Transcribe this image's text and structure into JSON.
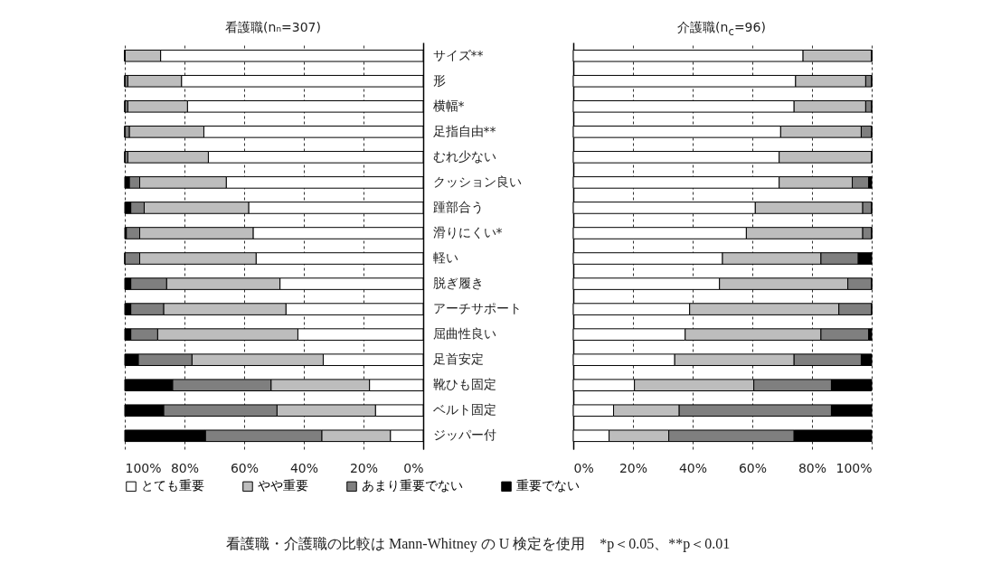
{
  "chart_data": [
    {
      "type": "bar",
      "orientation": "horizontal",
      "stacked": true,
      "title": "看護職(nₙ=307)",
      "categories": [
        "サイズ**",
        "形",
        "横幅*",
        "足指自由**",
        "むれ少ない",
        "クッション良い",
        "踵部合う",
        "滑りにくい*",
        "軽い",
        "脱ぎ履き",
        "アーチサポート",
        "屈曲性良い",
        "足首安定",
        "靴ひも固定",
        "ベルト固定",
        "ジッパー付"
      ],
      "series": [
        {
          "name": "とても重要",
          "color": "#ffffff",
          "values": [
            88,
            81,
            79,
            73.5,
            72,
            66,
            58.5,
            57,
            56,
            48,
            46,
            42,
            33.5,
            18,
            16,
            11
          ]
        },
        {
          "name": "やや重要",
          "color": "#bdbdbd",
          "values": [
            12,
            18,
            20,
            25,
            27,
            29,
            35,
            38,
            39,
            38,
            41,
            47,
            44,
            33,
            33,
            23
          ]
        },
        {
          "name": "あまり重要でない",
          "color": "#7f7f7f",
          "values": [
            0,
            1,
            1,
            1.5,
            1,
            3.5,
            4.5,
            4.5,
            5,
            12,
            11,
            9,
            18,
            33,
            38,
            39
          ]
        },
        {
          "name": "重要でない",
          "color": "#000000",
          "values": [
            0,
            0,
            0,
            0,
            0,
            1.5,
            2,
            0.5,
            0,
            2,
            2,
            2,
            4.5,
            16,
            13,
            27
          ]
        }
      ],
      "xlim": [
        100,
        0
      ],
      "xticks": [
        {
          "value": 100,
          "label": "100%"
        },
        {
          "value": 80,
          "label": "80%"
        },
        {
          "value": 60,
          "label": "60%"
        },
        {
          "value": 40,
          "label": "40%"
        },
        {
          "value": 20,
          "label": "20%"
        },
        {
          "value": 0,
          "label": "0%"
        }
      ],
      "grid": "x",
      "legend": "bottom",
      "annotations": [
        "看護職・介護職の比較は Mann-Whitney の U 検定を使用　*p＜0.05、**p＜0.01"
      ]
    },
    {
      "type": "bar",
      "orientation": "horizontal",
      "stacked": true,
      "title": "介護職(n$_{c}$=96)",
      "categories": [
        null,
        null,
        null,
        null,
        null,
        null,
        null,
        null,
        null,
        null,
        null,
        null,
        null,
        null,
        null,
        null
      ],
      "series": [
        {
          "color": "#ffffff",
          "values": [
            77,
            74.5,
            74,
            69.5,
            69,
            69,
            61,
            58,
            50,
            49,
            39,
            37.5,
            34,
            20.5,
            13.5,
            12
          ]
        },
        {
          "color": "#bdbdbd",
          "values": [
            23,
            23.5,
            24,
            27,
            31,
            24.5,
            36,
            39,
            33,
            43,
            50,
            45.5,
            40,
            40,
            22,
            20
          ]
        },
        {
          "color": "#7f7f7f",
          "values": [
            0,
            2,
            2,
            3.5,
            0,
            5.5,
            3,
            3,
            12.5,
            8,
            11,
            16,
            22.5,
            26,
            51,
            42
          ]
        },
        {
          "color": "#000000",
          "values": [
            0,
            0,
            0,
            0,
            0,
            1,
            0,
            0,
            4.5,
            0,
            0,
            1,
            3.5,
            13.5,
            13.5,
            26
          ]
        }
      ],
      "xlim": [
        0,
        100
      ],
      "xticks": [
        {
          "value": 0,
          "label": "0%"
        },
        {
          "value": 20,
          "label": "20%"
        },
        {
          "value": 40,
          "label": "40%"
        },
        {
          "value": 60,
          "label": "60%"
        },
        {
          "value": 80,
          "label": "80%"
        },
        {
          "value": 100,
          "label": "100%"
        }
      ],
      "grid": "x",
      "tick_labels": "x"
    }
  ]
}
